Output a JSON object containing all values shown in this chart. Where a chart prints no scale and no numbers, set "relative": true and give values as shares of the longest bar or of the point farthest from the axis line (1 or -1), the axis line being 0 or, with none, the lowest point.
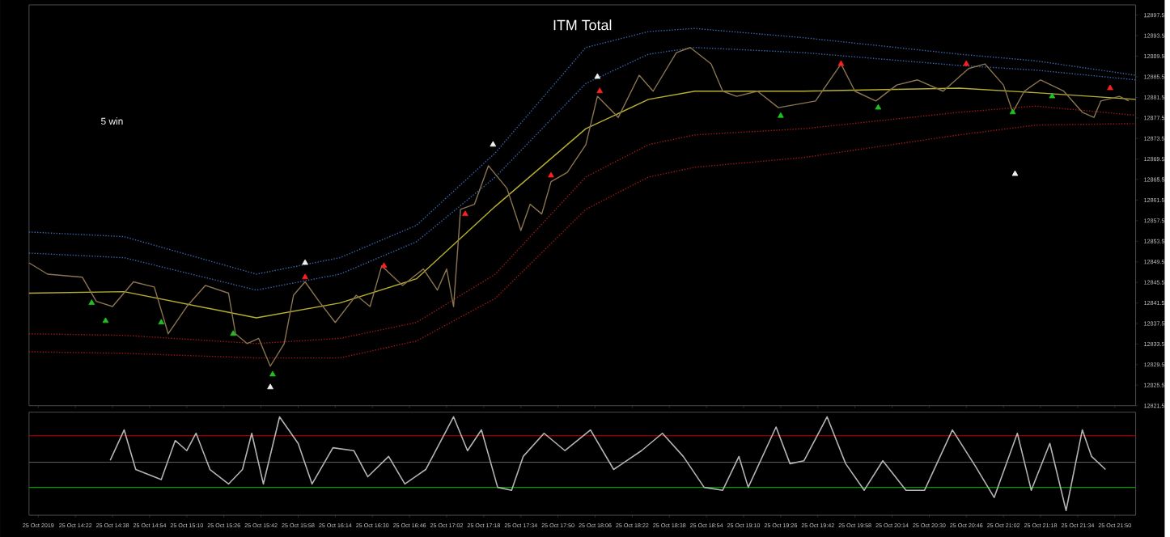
{
  "chart_data": [
    {
      "type": "line",
      "title": "ITM Total",
      "annotations": [
        "5 win"
      ],
      "marker": "none",
      "line_style": "solid",
      "tick_labels": "y",
      "xlim": [
        "2019-10-25T14:02",
        "2019-10-25T21:59"
      ],
      "ylim": [
        12821.5,
        12899.5
      ],
      "xticks": [
        {
          "value": "2019-10-25T14:06",
          "label": null
        },
        {
          "value": "2019-10-25T14:22",
          "label": null
        },
        {
          "value": "2019-10-25T14:38",
          "label": null
        },
        {
          "value": "2019-10-25T14:54",
          "label": null
        },
        {
          "value": "2019-10-25T15:10",
          "label": null
        },
        {
          "value": "2019-10-25T15:26",
          "label": null
        },
        {
          "value": "2019-10-25T15:42",
          "label": null
        },
        {
          "value": "2019-10-25T15:58",
          "label": null
        },
        {
          "value": "2019-10-25T16:14",
          "label": null
        },
        {
          "value": "2019-10-25T16:30",
          "label": null
        },
        {
          "value": "2019-10-25T16:46",
          "label": null
        },
        {
          "value": "2019-10-25T17:02",
          "label": null
        },
        {
          "value": "2019-10-25T17:18",
          "label": null
        },
        {
          "value": "2019-10-25T17:34",
          "label": null
        },
        {
          "value": "2019-10-25T17:50",
          "label": null
        },
        {
          "value": "2019-10-25T18:06",
          "label": null
        },
        {
          "value": "2019-10-25T18:22",
          "label": null
        },
        {
          "value": "2019-10-25T18:38",
          "label": null
        },
        {
          "value": "2019-10-25T18:54",
          "label": null
        },
        {
          "value": "2019-10-25T19:10",
          "label": null
        },
        {
          "value": "2019-10-25T19:26",
          "label": null
        },
        {
          "value": "2019-10-25T19:42",
          "label": null
        },
        {
          "value": "2019-10-25T19:58",
          "label": null
        },
        {
          "value": "2019-10-25T20:14",
          "label": null
        },
        {
          "value": "2019-10-25T20:30",
          "label": null
        },
        {
          "value": "2019-10-25T20:46",
          "label": null
        },
        {
          "value": "2019-10-25T21:02",
          "label": null
        },
        {
          "value": "2019-10-25T21:18",
          "label": null
        },
        {
          "value": "2019-10-25T21:34",
          "label": null
        },
        {
          "value": "2019-10-25T21:50",
          "label": null
        }
      ],
      "yticks": [
        12821.5,
        12825.5,
        12829.5,
        12833.5,
        12837.5,
        12841.5,
        12845.5,
        12849.5,
        12853.5,
        12857.5,
        12861.5,
        12865.5,
        12869.5,
        12873.5,
        12877.5,
        12881.5,
        12885.5,
        12889.5,
        12893.5,
        12897.5
      ],
      "series": [
        {
          "color": "#3a68b0",
          "line_style": "dotted",
          "x": [
            "2019-10-25T14:02",
            "2019-10-25T14:43",
            "2019-10-25T15:40",
            "2019-10-25T16:16",
            "2019-10-25T16:49",
            "2019-10-25T17:23",
            "2019-10-25T18:02",
            "2019-10-25T18:29",
            "2019-10-25T18:49",
            "2019-10-25T19:36",
            "2019-10-25T20:43",
            "2019-10-25T21:16",
            "2019-10-25T21:59"
          ],
          "values": [
            12855.3,
            12854.4,
            12847.1,
            12850.3,
            12856.6,
            12870.7,
            12891.2,
            12894.3,
            12894.9,
            12893.1,
            12889.9,
            12888.6,
            12885.8
          ]
        },
        {
          "color": "#3a68b0",
          "line_style": "dotted",
          "x": [
            "2019-10-25T14:02",
            "2019-10-25T14:43",
            "2019-10-25T15:40",
            "2019-10-25T16:16",
            "2019-10-25T16:49",
            "2019-10-25T17:23",
            "2019-10-25T18:02",
            "2019-10-25T18:29",
            "2019-10-25T18:49",
            "2019-10-25T19:36",
            "2019-10-25T20:43",
            "2019-10-25T21:16",
            "2019-10-25T21:59"
          ],
          "values": [
            12851.2,
            12850.3,
            12844.0,
            12847.1,
            12853.4,
            12866.0,
            12884.2,
            12889.9,
            12891.2,
            12890.2,
            12887.7,
            12886.8,
            12884.9
          ]
        },
        {
          "color": "#b8b030",
          "line_style": "solid",
          "x": [
            "2019-10-25T14:02",
            "2019-10-25T14:43",
            "2019-10-25T15:40",
            "2019-10-25T16:16",
            "2019-10-25T16:49",
            "2019-10-25T17:23",
            "2019-10-25T18:02",
            "2019-10-25T18:29",
            "2019-10-25T18:49",
            "2019-10-25T19:36",
            "2019-10-25T20:43",
            "2019-10-25T21:16",
            "2019-10-25T21:59"
          ],
          "values": [
            12843.4,
            12843.7,
            12838.6,
            12841.5,
            12846.2,
            12860.3,
            12875.4,
            12881.1,
            12882.7,
            12882.7,
            12883.3,
            12882.4,
            12881.1
          ]
        },
        {
          "color": "#a01818",
          "line_style": "dotted",
          "x": [
            "2019-10-25T14:02",
            "2019-10-25T14:43",
            "2019-10-25T15:40",
            "2019-10-25T16:16",
            "2019-10-25T16:49",
            "2019-10-25T17:23",
            "2019-10-25T18:02",
            "2019-10-25T18:29",
            "2019-10-25T18:49",
            "2019-10-25T19:36",
            "2019-10-25T20:43",
            "2019-10-25T21:16",
            "2019-10-25T21:59"
          ],
          "values": [
            12835.5,
            12835.2,
            12833.6,
            12834.6,
            12837.7,
            12847.1,
            12866.0,
            12872.3,
            12874.2,
            12875.4,
            12878.6,
            12879.8,
            12878.0
          ]
        },
        {
          "color": "#a01818",
          "line_style": "dotted",
          "x": [
            "2019-10-25T14:02",
            "2019-10-25T14:43",
            "2019-10-25T15:40",
            "2019-10-25T16:16",
            "2019-10-25T16:49",
            "2019-10-25T17:23",
            "2019-10-25T18:02",
            "2019-10-25T18:29",
            "2019-10-25T18:49",
            "2019-10-25T19:36",
            "2019-10-25T20:43",
            "2019-10-25T21:16",
            "2019-10-25T21:59"
          ],
          "values": [
            12832.0,
            12831.7,
            12830.8,
            12830.8,
            12834.1,
            12842.4,
            12859.7,
            12866.0,
            12867.9,
            12869.8,
            12874.2,
            12876.1,
            12876.4
          ]
        },
        {
          "color": "#8a7550",
          "line_style": "solid",
          "x": [
            "2019-10-25T14:02",
            "2019-10-25T14:10",
            "2019-10-25T14:25",
            "2019-10-25T14:31",
            "2019-10-25T14:38",
            "2019-10-25T14:47",
            "2019-10-25T14:56",
            "2019-10-25T15:02",
            "2019-10-25T15:10",
            "2019-10-25T15:18",
            "2019-10-25T15:28",
            "2019-10-25T15:31",
            "2019-10-25T15:36",
            "2019-10-25T15:41",
            "2019-10-25T15:46",
            "2019-10-25T15:52",
            "2019-10-25T15:56",
            "2019-10-25T16:01",
            "2019-10-25T16:07",
            "2019-10-25T16:14",
            "2019-10-25T16:23",
            "2019-10-25T16:29",
            "2019-10-25T16:34",
            "2019-10-25T16:43",
            "2019-10-25T16:52",
            "2019-10-25T16:58",
            "2019-10-25T17:02",
            "2019-10-25T17:05",
            "2019-10-25T17:08",
            "2019-10-25T17:14",
            "2019-10-25T17:20",
            "2019-10-25T17:28",
            "2019-10-25T17:34",
            "2019-10-25T17:38",
            "2019-10-25T17:43",
            "2019-10-25T17:47",
            "2019-10-25T17:54",
            "2019-10-25T18:02",
            "2019-10-25T18:07",
            "2019-10-25T18:16",
            "2019-10-25T18:25",
            "2019-10-25T18:31",
            "2019-10-25T18:41",
            "2019-10-25T18:47",
            "2019-10-25T18:56",
            "2019-10-25T19:01",
            "2019-10-25T19:07",
            "2019-10-25T19:16",
            "2019-10-25T19:25",
            "2019-10-25T19:41",
            "2019-10-25T19:52",
            "2019-10-25T19:58",
            "2019-10-25T20:07",
            "2019-10-25T20:16",
            "2019-10-25T20:25",
            "2019-10-25T20:36",
            "2019-10-25T20:47",
            "2019-10-25T20:54",
            "2019-10-25T21:02",
            "2019-10-25T21:06",
            "2019-10-25T21:11",
            "2019-10-25T21:18",
            "2019-10-25T21:28",
            "2019-10-25T21:36",
            "2019-10-25T21:41",
            "2019-10-25T21:44",
            "2019-10-25T21:52",
            "2019-10-25T21:56"
          ],
          "values": [
            12849.3,
            12847.1,
            12846.5,
            12841.8,
            12840.8,
            12845.6,
            12844.6,
            12835.5,
            12840.8,
            12844.9,
            12843.4,
            12835.5,
            12833.6,
            12834.6,
            12829.2,
            12833.6,
            12843.0,
            12845.6,
            12841.8,
            12837.7,
            12843.0,
            12840.8,
            12848.7,
            12844.9,
            12848.1,
            12844.0,
            12848.1,
            12840.8,
            12859.7,
            12860.7,
            12868.2,
            12863.8,
            12855.6,
            12860.7,
            12858.8,
            12865.1,
            12866.9,
            12872.3,
            12881.7,
            12877.6,
            12885.8,
            12882.7,
            12890.2,
            12891.2,
            12888.0,
            12882.7,
            12881.7,
            12882.7,
            12879.5,
            12880.8,
            12888.0,
            12882.7,
            12880.8,
            12883.9,
            12884.9,
            12882.7,
            12887.1,
            12888.0,
            12883.9,
            12878.6,
            12882.7,
            12884.9,
            12882.7,
            12878.6,
            12877.6,
            12880.8,
            12881.7,
            12880.8
          ]
        },
        {
          "type": "scatter",
          "marker": "triangle",
          "color": "#ff2020",
          "x": [
            "2019-10-25T16:01",
            "2019-10-25T16:35",
            "2019-10-25T17:10",
            "2019-10-25T17:47",
            "2019-10-25T18:08",
            "2019-10-25T19:52",
            "2019-10-25T20:46",
            "2019-10-25T21:48"
          ],
          "values": [
            12846.5,
            12848.7,
            12858.8,
            12866.3,
            12882.7,
            12888.0,
            12888.0,
            12883.3
          ]
        },
        {
          "type": "scatter",
          "marker": "triangle",
          "color": "#20c020",
          "x": [
            "2019-10-25T14:29",
            "2019-10-25T14:35",
            "2019-10-25T14:59",
            "2019-10-25T15:30",
            "2019-10-25T15:47",
            "2019-10-25T19:26",
            "2019-10-25T20:08",
            "2019-10-25T21:06",
            "2019-10-25T21:23"
          ],
          "values": [
            12841.5,
            12838.0,
            12837.7,
            12835.5,
            12827.6,
            12877.9,
            12879.5,
            12878.6,
            12881.7
          ]
        },
        {
          "type": "scatter",
          "marker": "triangle",
          "color": "#f0f0f0",
          "x": [
            "2019-10-25T16:01",
            "2019-10-25T17:22",
            "2019-10-25T18:07",
            "2019-10-25T15:46",
            "2019-10-25T21:07"
          ],
          "values": [
            12849.3,
            12872.3,
            12885.5,
            12825.1,
            12866.6
          ]
        }
      ]
    },
    {
      "type": "line",
      "relative": true,
      "marker": "none",
      "line_style": "solid",
      "tick_labels": "x",
      "xlim": [
        "2019-10-25T14:02",
        "2019-10-25T21:59"
      ],
      "xticks": [
        {
          "value": "2019-10-25T14:06",
          "label": "25 Oct 2019"
        },
        {
          "value": "2019-10-25T14:22",
          "label": "25 Oct 14:22"
        },
        {
          "value": "2019-10-25T14:38",
          "label": "25 Oct 14:38"
        },
        {
          "value": "2019-10-25T14:54",
          "label": "25 Oct 14:54"
        },
        {
          "value": "2019-10-25T15:10",
          "label": "25 Oct 15:10"
        },
        {
          "value": "2019-10-25T15:26",
          "label": "25 Oct 15:26"
        },
        {
          "value": "2019-10-25T15:42",
          "label": "25 Oct 15:42"
        },
        {
          "value": "2019-10-25T15:58",
          "label": "25 Oct 15:58"
        },
        {
          "value": "2019-10-25T16:14",
          "label": "25 Oct 16:14"
        },
        {
          "value": "2019-10-25T16:30",
          "label": "25 Oct 16:30"
        },
        {
          "value": "2019-10-25T16:46",
          "label": "25 Oct 16:46"
        },
        {
          "value": "2019-10-25T17:02",
          "label": "25 Oct 17:02"
        },
        {
          "value": "2019-10-25T17:18",
          "label": "25 Oct 17:18"
        },
        {
          "value": "2019-10-25T17:34",
          "label": "25 Oct 17:34"
        },
        {
          "value": "2019-10-25T17:50",
          "label": "25 Oct 17:50"
        },
        {
          "value": "2019-10-25T18:06",
          "label": "25 Oct 18:06"
        },
        {
          "value": "2019-10-25T18:22",
          "label": "25 Oct 18:22"
        },
        {
          "value": "2019-10-25T18:38",
          "label": "25 Oct 18:38"
        },
        {
          "value": "2019-10-25T18:54",
          "label": "25 Oct 18:54"
        },
        {
          "value": "2019-10-25T19:10",
          "label": "25 Oct 19:10"
        },
        {
          "value": "2019-10-25T19:26",
          "label": "25 Oct 19:26"
        },
        {
          "value": "2019-10-25T19:42",
          "label": "25 Oct 19:42"
        },
        {
          "value": "2019-10-25T19:58",
          "label": "25 Oct 19:58"
        },
        {
          "value": "2019-10-25T20:14",
          "label": "25 Oct 20:14"
        },
        {
          "value": "2019-10-25T20:30",
          "label": "25 Oct 20:30"
        },
        {
          "value": "2019-10-25T20:46",
          "label": "25 Oct 20:46"
        },
        {
          "value": "2019-10-25T21:02",
          "label": "25 Oct 21:02"
        },
        {
          "value": "2019-10-25T21:18",
          "label": "25 Oct 21:18"
        },
        {
          "value": "2019-10-25T21:34",
          "label": "25 Oct 21:34"
        },
        {
          "value": "2019-10-25T21:50",
          "label": "25 Oct 21:50"
        }
      ],
      "ref_lines": [
        {
          "axis": "y",
          "value": 0.55,
          "color": "#c00000"
        },
        {
          "axis": "y",
          "value": -0.52,
          "color": "#00a000"
        }
      ],
      "series": [
        {
          "color": "#b4b4b4",
          "x": [
            "2019-10-25T14:37",
            "2019-10-25T14:43",
            "2019-10-25T14:48",
            "2019-10-25T14:59",
            "2019-10-25T15:05",
            "2019-10-25T15:10",
            "2019-10-25T15:14",
            "2019-10-25T15:20",
            "2019-10-25T15:28",
            "2019-10-25T15:34",
            "2019-10-25T15:38",
            "2019-10-25T15:43",
            "2019-10-25T15:50",
            "2019-10-25T15:58",
            "2019-10-25T16:04",
            "2019-10-25T16:13",
            "2019-10-25T16:22",
            "2019-10-25T16:28",
            "2019-10-25T16:37",
            "2019-10-25T16:44",
            "2019-10-25T16:53",
            "2019-10-25T17:05",
            "2019-10-25T17:11",
            "2019-10-25T17:17",
            "2019-10-25T17:24",
            "2019-10-25T17:30",
            "2019-10-25T17:35",
            "2019-10-25T17:44",
            "2019-10-25T17:53",
            "2019-10-25T18:04",
            "2019-10-25T18:14",
            "2019-10-25T18:26",
            "2019-10-25T18:35",
            "2019-10-25T18:44",
            "2019-10-25T18:53",
            "2019-10-25T19:01",
            "2019-10-25T19:08",
            "2019-10-25T19:12",
            "2019-10-25T19:24",
            "2019-10-25T19:30",
            "2019-10-25T19:36",
            "2019-10-25T19:46",
            "2019-10-25T19:54",
            "2019-10-25T20:02",
            "2019-10-25T20:10",
            "2019-10-25T20:20",
            "2019-10-25T20:28",
            "2019-10-25T20:40",
            "2019-10-25T20:50",
            "2019-10-25T20:58",
            "2019-10-25T21:08",
            "2019-10-25T21:14",
            "2019-10-25T21:22",
            "2019-10-25T21:29",
            "2019-10-25T21:36",
            "2019-10-25T21:40",
            "2019-10-25T21:46"
          ],
          "values": [
            0.04,
            0.67,
            -0.15,
            -0.36,
            0.45,
            0.24,
            0.6,
            -0.15,
            -0.45,
            -0.15,
            0.6,
            -0.45,
            0.94,
            0.39,
            -0.45,
            0.3,
            0.24,
            -0.3,
            0.12,
            -0.45,
            -0.15,
            0.94,
            0.24,
            0.67,
            -0.52,
            -0.58,
            0.12,
            0.6,
            0.24,
            0.67,
            -0.15,
            0.24,
            0.6,
            0.12,
            -0.52,
            -0.58,
            0.12,
            -0.52,
            0.73,
            -0.03,
            0.03,
            0.94,
            -0.03,
            -0.58,
            0.03,
            -0.58,
            -0.58,
            0.67,
            -0.09,
            -0.73,
            0.6,
            -0.58,
            0.39,
            -1,
            0.67,
            0.12,
            -0.15
          ]
        }
      ]
    }
  ]
}
